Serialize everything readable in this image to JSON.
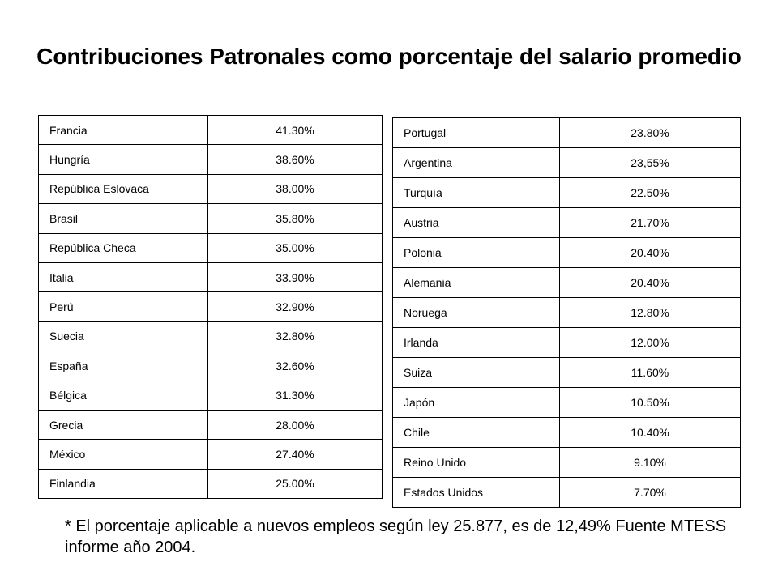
{
  "title": "Contribuciones Patronales como porcentaje del salario promedio",
  "table_left": [
    {
      "country": "Francia",
      "value": "41.30%"
    },
    {
      "country": "Hungría",
      "value": "38.60%"
    },
    {
      "country": "República Eslovaca",
      "value": "38.00%"
    },
    {
      "country": "Brasil",
      "value": "35.80%"
    },
    {
      "country": "República Checa",
      "value": "35.00%"
    },
    {
      "country": "Italia",
      "value": "33.90%"
    },
    {
      "country": "Perú",
      "value": "32.90%"
    },
    {
      "country": "Suecia",
      "value": "32.80%"
    },
    {
      "country": "España",
      "value": "32.60%"
    },
    {
      "country": "Bélgica",
      "value": "31.30%"
    },
    {
      "country": "Grecia",
      "value": "28.00%"
    },
    {
      "country": "México",
      "value": "27.40%"
    },
    {
      "country": "Finlandia",
      "value": "25.00%"
    }
  ],
  "table_right": [
    {
      "country": "Portugal",
      "value": "23.80%"
    },
    {
      "country": "Argentina",
      "value": "23,55%"
    },
    {
      "country": "Turquía",
      "value": "22.50%"
    },
    {
      "country": "Austria",
      "value": "21.70%"
    },
    {
      "country": "Polonia",
      "value": "20.40%"
    },
    {
      "country": "Alemania",
      "value": "20.40%"
    },
    {
      "country": "Noruega",
      "value": "12.80%"
    },
    {
      "country": "Irlanda",
      "value": "12.00%"
    },
    {
      "country": "Suiza",
      "value": "11.60%"
    },
    {
      "country": "Japón",
      "value": "10.50%"
    },
    {
      "country": "Chile",
      "value": "10.40%"
    },
    {
      "country": "Reino Unido",
      "value": "9.10%"
    },
    {
      "country": "Estados Unidos",
      "value": "7.70%"
    }
  ],
  "footnote": "* El porcentaje aplicable a nuevos empleos según ley 25.877, es de 12,49% Fuente MTESS informe año 2004."
}
